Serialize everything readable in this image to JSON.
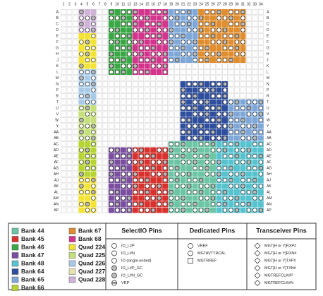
{
  "columns": [
    "1",
    "2",
    "3",
    "4",
    "5",
    "6",
    "7",
    "8",
    "9",
    "10",
    "11",
    "12",
    "13",
    "14",
    "15",
    "16",
    "17",
    "18",
    "19",
    "20",
    "21",
    "22",
    "23",
    "24",
    "25",
    "26",
    "27",
    "28",
    "29",
    "30",
    "31",
    "32",
    "33",
    "34"
  ],
  "rows": [
    "A",
    "B",
    "C",
    "D",
    "E",
    "F",
    "G",
    "H",
    "J",
    "K",
    "L",
    "M",
    "N",
    "P",
    "R",
    "T",
    "U",
    "V",
    "W",
    "Y",
    "AA",
    "AB",
    "AC",
    "AD",
    "AE",
    "AF",
    "AG",
    "AH",
    "AJ",
    "AK",
    "AL",
    "AM",
    "AN",
    "AP"
  ],
  "legend": {
    "banks": [
      {
        "label": "Bank 44",
        "color": "#6cc6a6"
      },
      {
        "label": "Bank 45",
        "color": "#d9322e"
      },
      {
        "label": "Bank 46",
        "color": "#3aa845"
      },
      {
        "label": "Bank 47",
        "color": "#7b4fa0"
      },
      {
        "label": "Bank 48",
        "color": "#57c3cf"
      },
      {
        "label": "Bank 64",
        "color": "#2f4f9e"
      },
      {
        "label": "Bank 65",
        "color": "#7fa8d8"
      },
      {
        "label": "Bank 66",
        "color": "#b7d435"
      },
      {
        "label": "Bank 67",
        "color": "#e08e2f"
      },
      {
        "label": "Bank 68",
        "color": "#d3358c"
      },
      {
        "label": "Quad 224",
        "color": "#f2e335"
      },
      {
        "label": "Quad 225",
        "color": "#c5df7a"
      },
      {
        "label": "Quad 226",
        "color": "#a9cbe8"
      },
      {
        "label": "Quad 227",
        "color": "#e5e3b0"
      },
      {
        "label": "Quad 228",
        "color": "#cfb4d8"
      }
    ],
    "selectio": {
      "title": "SelectIO Pins",
      "items": [
        "IO_L#P",
        "IO_L#N",
        "IO (single-ended)",
        "IO_L#P_GC",
        "IO_L#N_GC",
        "VRP"
      ]
    },
    "dedicated": {
      "title": "Dedicated Pins",
      "items": [
        "VREF",
        "MGTAVTTRCAL",
        "MGTRREF"
      ]
    },
    "transceiver": {
      "title": "Transceiver Pins",
      "items": [
        "MGT[H or Y]RXP#",
        "MGT[H or Y]RXN#",
        "MGT[H or Y]TXP#",
        "MGT[H or Y]TXN#",
        "MGTREFCLK#P",
        "MGTREFCLK#N"
      ]
    }
  }
}
